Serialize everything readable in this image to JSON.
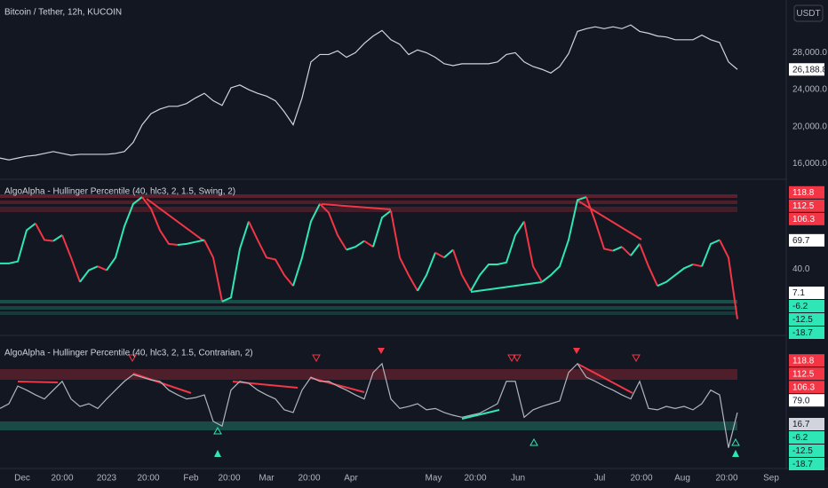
{
  "chart_data": [
    {
      "type": "line",
      "title": "Bitcoin / Tether, 12h, KUCOIN",
      "currency": "USDT",
      "color": "#d1d4dc",
      "values": [
        16600,
        16400,
        16600,
        16800,
        16900,
        17100,
        17300,
        17100,
        16900,
        17000,
        17000,
        17000,
        17000,
        17100,
        17300,
        18300,
        20200,
        21400,
        21900,
        22200,
        22200,
        22500,
        23100,
        23600,
        22800,
        22300,
        24200,
        24500,
        24000,
        23600,
        23300,
        22800,
        21600,
        20200,
        23100,
        27000,
        27800,
        27800,
        28200,
        27500,
        28000,
        29000,
        29800,
        30400,
        29400,
        28900,
        27800,
        28300,
        28000,
        27500,
        26800,
        26600,
        26800,
        26800,
        26800,
        26800,
        27000,
        27800,
        28000,
        27000,
        26500,
        26200,
        25800,
        26500,
        27900,
        30300,
        30600,
        30800,
        30600,
        30800,
        30600,
        31000,
        30300,
        30100,
        29800,
        29700,
        29400,
        29400,
        29400,
        29900,
        29400,
        29100,
        27000,
        26188.8
      ],
      "ylim": [
        14500,
        33700
      ],
      "yticks": [
        {
          "value": 16000,
          "label": "16,000.0"
        },
        {
          "value": 20000,
          "label": "20,000.0"
        },
        {
          "value": 24000,
          "label": "24,000.0"
        },
        {
          "value": 28000,
          "label": "28,000.0"
        }
      ],
      "price_labels": [
        {
          "value": 26188.8,
          "label": "26,188.8",
          "color": "#ffffff"
        }
      ],
      "xlim": [
        0,
        88.5
      ],
      "xticks": [
        {
          "value": 2.5,
          "label": "Dec"
        },
        {
          "value": 7,
          "label": "20:00"
        },
        {
          "value": 12,
          "label": "2023"
        },
        {
          "value": 16.7,
          "label": "20:00"
        },
        {
          "value": 21.5,
          "label": "Feb"
        },
        {
          "value": 25.8,
          "label": "20:00"
        },
        {
          "value": 30,
          "label": "Mar"
        },
        {
          "value": 34.8,
          "label": "20:00"
        },
        {
          "value": 39.5,
          "label": "Apr"
        },
        {
          "value": 48.8,
          "label": "May"
        },
        {
          "value": 53.5,
          "label": "20:00"
        },
        {
          "value": 58.3,
          "label": "Jun"
        },
        {
          "value": 67.5,
          "label": "Jul"
        },
        {
          "value": 72.2,
          "label": "20:00"
        },
        {
          "value": 76.8,
          "label": "Aug"
        },
        {
          "value": 81.8,
          "label": "20:00"
        },
        {
          "value": 86.8,
          "label": "Sep"
        }
      ]
    },
    {
      "type": "line",
      "title": "AlgoAlpha - Hullinger Percentile (40, hlc3, 2, 1.5, Swing, 2)",
      "rise_color": "#2ee6b6",
      "fall_color": "#f23645",
      "values": [
        46,
        46,
        48,
        80,
        87,
        70,
        69,
        75,
        52,
        27,
        39,
        43,
        39,
        52,
        84,
        107,
        114,
        102,
        80,
        66,
        65,
        66,
        68,
        70,
        52,
        7,
        11,
        61,
        89,
        70,
        52,
        50,
        34,
        23,
        52,
        89,
        107,
        98,
        75,
        60,
        63,
        69,
        63,
        93,
        100,
        52,
        34,
        18,
        34,
        57,
        52,
        60,
        34,
        18,
        34,
        45,
        45,
        47,
        75,
        89,
        43,
        27,
        34,
        43,
        70,
        111,
        114,
        89,
        61,
        59,
        63,
        54,
        66,
        43,
        23,
        27,
        34,
        41,
        45,
        43,
        66,
        70,
        52,
        -11
      ],
      "ylim": [
        -25,
        125
      ],
      "yticks": [
        {
          "value": 40,
          "label": "40.0"
        }
      ],
      "price_labels": [
        {
          "value": 118.8,
          "label": "118.8",
          "color": "#f23645"
        },
        {
          "value": 112.5,
          "label": "112.5",
          "color": "#f23645"
        },
        {
          "value": 106.3,
          "label": "106.3",
          "color": "#f23645"
        },
        {
          "value": 69.7,
          "label": "69.7",
          "color": "#ffffff"
        },
        {
          "value": 7.1,
          "label": "7.1",
          "color": "#ffffff"
        },
        {
          "value": -6.2,
          "label": "-6.2",
          "color": "#2ee6b6"
        },
        {
          "value": -12.5,
          "label": "-12.5",
          "color": "#2ee6b6"
        },
        {
          "value": -18.7,
          "label": "-18.7",
          "color": "#2ee6b6"
        }
      ]
    },
    {
      "type": "line",
      "title": "AlgoAlpha - Hullinger Percentile (40, hlc3, 2, 1.5, Contrarian, 2)",
      "color": "#b2b5be",
      "values": [
        48,
        55,
        81,
        75,
        68,
        62,
        75,
        88,
        62,
        51,
        55,
        48,
        62,
        75,
        88,
        98,
        94,
        90,
        88,
        75,
        68,
        62,
        64,
        68,
        29,
        22,
        75,
        88,
        85,
        75,
        68,
        62,
        46,
        42,
        75,
        94,
        88,
        88,
        81,
        75,
        68,
        62,
        101,
        114,
        62,
        48,
        51,
        55,
        46,
        48,
        42,
        38,
        35,
        38,
        41,
        48,
        55,
        88,
        88,
        35,
        46,
        51,
        55,
        59,
        101,
        114,
        94,
        88,
        81,
        75,
        68,
        62,
        88,
        48,
        46,
        51,
        48,
        51,
        46,
        55,
        75,
        68,
        -10,
        42
      ],
      "ylim": [
        -30,
        140
      ],
      "price_labels": [
        {
          "value": 118.8,
          "label": "118.8",
          "color": "#f23645"
        },
        {
          "value": 112.5,
          "label": "112.5",
          "color": "#f23645"
        },
        {
          "value": 106.3,
          "label": "106.3",
          "color": "#f23645"
        },
        {
          "value": 79.0,
          "label": "79.0",
          "color": "#ffffff"
        },
        {
          "value": 16.7,
          "label": "16.7",
          "color": "#d1d4dc"
        },
        {
          "value": -6.2,
          "label": "-6.2",
          "color": "#2ee6b6"
        },
        {
          "value": -12.5,
          "label": "-12.5",
          "color": "#2ee6b6"
        },
        {
          "value": -18.7,
          "label": "-18.7",
          "color": "#2ee6b6"
        }
      ]
    }
  ]
}
